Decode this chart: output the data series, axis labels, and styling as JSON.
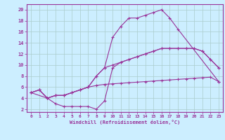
{
  "xlabel": "Windchill (Refroidissement éolien,°C)",
  "bg_color": "#cceeff",
  "line_color": "#993399",
  "grid_color": "#aacccc",
  "xlim": [
    -0.5,
    23.5
  ],
  "ylim": [
    1.5,
    21.0
  ],
  "xticks": [
    0,
    1,
    2,
    3,
    4,
    5,
    6,
    7,
    8,
    9,
    10,
    11,
    12,
    13,
    14,
    15,
    16,
    17,
    18,
    19,
    20,
    21,
    22,
    23
  ],
  "yticks": [
    2,
    4,
    6,
    8,
    10,
    12,
    14,
    16,
    18,
    20
  ],
  "line1_x": [
    0,
    1,
    2,
    3,
    4,
    5,
    6,
    7,
    8,
    9,
    10,
    11,
    12,
    13,
    14,
    15,
    16,
    17,
    18,
    23
  ],
  "line1_y": [
    5,
    5.5,
    4.0,
    4.5,
    4.5,
    5.0,
    5.5,
    6.0,
    8.0,
    9.5,
    15,
    17,
    18.5,
    18.5,
    19.0,
    19.5,
    20,
    18.5,
    16.5,
    7
  ],
  "line2_x": [
    0,
    1,
    2,
    3,
    4,
    5,
    6,
    7,
    8,
    9,
    10,
    11,
    12,
    13,
    14,
    15,
    16,
    17,
    18,
    19,
    20,
    21,
    22,
    23
  ],
  "line2_y": [
    5,
    5.5,
    4.0,
    4.5,
    4.5,
    5.0,
    5.5,
    6.0,
    8.0,
    9.5,
    10.0,
    10.5,
    11.0,
    11.5,
    12.0,
    12.5,
    13.0,
    13.0,
    13.0,
    13.0,
    13.0,
    12.5,
    11.0,
    9.5
  ],
  "line3_x": [
    0,
    2,
    3,
    4,
    5,
    6,
    7,
    8,
    9,
    10,
    11,
    12,
    13,
    14,
    15,
    16,
    17,
    18,
    19,
    20,
    21,
    22,
    23
  ],
  "line3_y": [
    5,
    4.0,
    3.0,
    2.5,
    2.5,
    2.5,
    2.5,
    2.0,
    3.5,
    9.5,
    10.5,
    11.0,
    11.5,
    12.0,
    12.5,
    13.0,
    13.0,
    13.0,
    13.0,
    13.0,
    12.5,
    11.0,
    9.5
  ],
  "line4_x": [
    0,
    1,
    2,
    3,
    4,
    5,
    6,
    7,
    8,
    9,
    10,
    11,
    12,
    13,
    14,
    15,
    16,
    17,
    18,
    19,
    20,
    21,
    22,
    23
  ],
  "line4_y": [
    5,
    5.5,
    4.0,
    4.5,
    4.5,
    5.0,
    5.5,
    6.0,
    6.3,
    6.5,
    6.6,
    6.7,
    6.8,
    6.9,
    7.0,
    7.1,
    7.2,
    7.3,
    7.4,
    7.5,
    7.6,
    7.7,
    7.8,
    7.0
  ]
}
